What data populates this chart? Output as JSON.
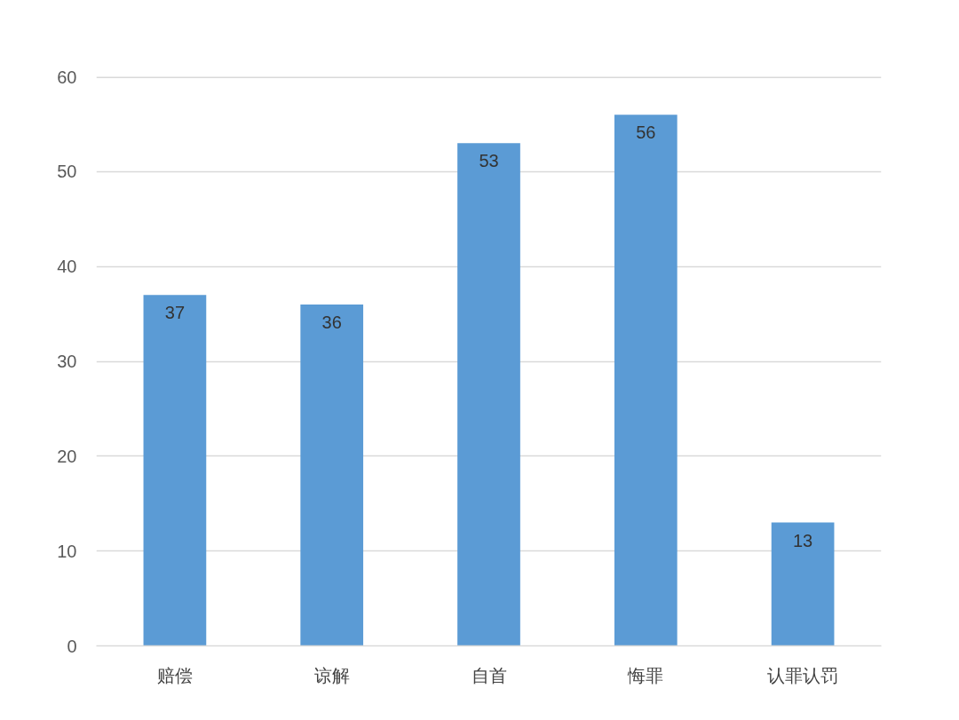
{
  "chart_data": {
    "type": "bar",
    "categories": [
      "赔偿",
      "谅解",
      "自首",
      "悔罪",
      "认罪认罚"
    ],
    "values": [
      37,
      36,
      53,
      56,
      13
    ],
    "color": "#5b9bd5",
    "ylim": [
      0,
      60
    ],
    "yticks": [
      0,
      10,
      20,
      30,
      40,
      50,
      60
    ],
    "grid": "y",
    "data_labels": true
  }
}
